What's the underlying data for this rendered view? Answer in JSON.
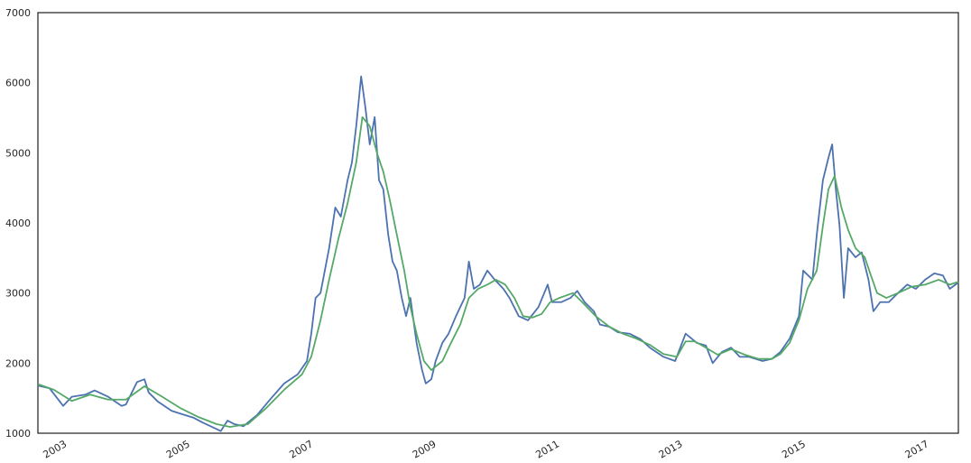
{
  "chart_data": {
    "type": "line",
    "xlim": [
      2002.52,
      2017.47
    ],
    "xticks": [
      2003,
      2005,
      2007,
      2009,
      2011,
      2013,
      2015,
      2017
    ],
    "ylim": [
      1000,
      7000
    ],
    "yticks": [
      1000,
      2000,
      3000,
      4000,
      5000,
      6000,
      7000
    ],
    "grid": false,
    "series": [
      {
        "color": "#4c72b0",
        "x": [
          2002.52,
          2002.71,
          2002.93,
          2003.07,
          2003.29,
          2003.44,
          2003.66,
          2003.88,
          2003.95,
          2004.13,
          2004.25,
          2004.32,
          2004.47,
          2004.69,
          2004.83,
          2005.05,
          2005.2,
          2005.42,
          2005.49,
          2005.6,
          2005.71,
          2005.86,
          2006.08,
          2006.3,
          2006.52,
          2006.74,
          2006.89,
          2006.96,
          2007.03,
          2007.11,
          2007.18,
          2007.25,
          2007.35,
          2007.44,
          2007.55,
          2007.62,
          2007.69,
          2007.77,
          2007.84,
          2007.91,
          2007.99,
          2008.06,
          2008.13,
          2008.21,
          2008.28,
          2008.35,
          2008.43,
          2008.5,
          2008.57,
          2008.67,
          2008.76,
          2008.82,
          2008.91,
          2008.98,
          2009.09,
          2009.19,
          2009.31,
          2009.45,
          2009.52,
          2009.6,
          2009.7,
          2009.82,
          2009.94,
          2010.08,
          2010.18,
          2010.33,
          2010.48,
          2010.65,
          2010.8,
          2010.87,
          2011.02,
          2011.17,
          2011.28,
          2011.4,
          2011.55,
          2011.65,
          2011.8,
          2011.94,
          2012.13,
          2012.31,
          2012.46,
          2012.68,
          2012.87,
          2013.04,
          2013.22,
          2013.37,
          2013.48,
          2013.63,
          2013.78,
          2013.92,
          2014.07,
          2014.29,
          2014.44,
          2014.58,
          2014.73,
          2014.88,
          2014.95,
          2015.1,
          2015.17,
          2015.27,
          2015.36,
          2015.42,
          2015.48,
          2015.54,
          2015.61,
          2015.68,
          2015.8,
          2015.9,
          2016.01,
          2016.09,
          2016.2,
          2016.34,
          2016.49,
          2016.64,
          2016.78,
          2016.93,
          2017.08,
          2017.22,
          2017.33,
          2017.47
        ],
        "values": [
          1680,
          1640,
          1390,
          1520,
          1550,
          1610,
          1520,
          1390,
          1410,
          1730,
          1770,
          1580,
          1450,
          1320,
          1280,
          1220,
          1150,
          1060,
          1030,
          1180,
          1130,
          1100,
          1260,
          1490,
          1710,
          1840,
          2030,
          2420,
          2930,
          3000,
          3320,
          3640,
          4220,
          4090,
          4610,
          4860,
          5380,
          6090,
          5640,
          5120,
          5510,
          4610,
          4480,
          3830,
          3450,
          3320,
          2930,
          2670,
          2930,
          2290,
          1900,
          1710,
          1770,
          2030,
          2290,
          2420,
          2670,
          2930,
          3450,
          3060,
          3120,
          3320,
          3190,
          3060,
          2930,
          2670,
          2610,
          2800,
          3120,
          2870,
          2870,
          2930,
          3030,
          2870,
          2740,
          2550,
          2520,
          2440,
          2420,
          2340,
          2220,
          2090,
          2030,
          2420,
          2290,
          2250,
          2000,
          2160,
          2220,
          2090,
          2090,
          2030,
          2060,
          2160,
          2350,
          2670,
          3320,
          3190,
          3830,
          4610,
          4930,
          5120,
          4480,
          3960,
          2930,
          3640,
          3510,
          3580,
          3190,
          2740,
          2870,
          2870,
          3000,
          3120,
          3060,
          3190,
          3280,
          3250,
          3060,
          3150
        ]
      },
      {
        "color": "#55a868",
        "x": [
          2002.52,
          2002.78,
          2003.07,
          2003.37,
          2003.66,
          2003.95,
          2004.25,
          2004.54,
          2004.83,
          2005.13,
          2005.42,
          2005.64,
          2005.93,
          2006.23,
          2006.52,
          2006.81,
          2006.96,
          2007.11,
          2007.25,
          2007.4,
          2007.55,
          2007.69,
          2007.79,
          2007.91,
          2008.03,
          2008.13,
          2008.23,
          2008.35,
          2008.47,
          2008.57,
          2008.67,
          2008.79,
          2008.91,
          2009.09,
          2009.23,
          2009.38,
          2009.52,
          2009.67,
          2009.82,
          2009.96,
          2010.11,
          2010.26,
          2010.4,
          2010.55,
          2010.7,
          2010.84,
          2010.99,
          2011.21,
          2011.36,
          2011.58,
          2011.8,
          2012.02,
          2012.24,
          2012.46,
          2012.68,
          2012.9,
          2013.04,
          2013.19,
          2013.37,
          2013.56,
          2013.78,
          2014.0,
          2014.22,
          2014.44,
          2014.58,
          2014.73,
          2014.88,
          2015.02,
          2015.17,
          2015.27,
          2015.36,
          2015.46,
          2015.57,
          2015.68,
          2015.8,
          2015.95,
          2016.05,
          2016.15,
          2016.3,
          2016.49,
          2016.71,
          2016.93,
          2017.15,
          2017.33,
          2017.47
        ],
        "values": [
          1700,
          1620,
          1460,
          1550,
          1480,
          1480,
          1670,
          1520,
          1360,
          1230,
          1130,
          1090,
          1130,
          1360,
          1620,
          1840,
          2090,
          2610,
          3190,
          3770,
          4280,
          4860,
          5510,
          5380,
          4990,
          4730,
          4350,
          3830,
          3320,
          2800,
          2420,
          2030,
          1900,
          2030,
          2290,
          2550,
          2930,
          3060,
          3120,
          3190,
          3120,
          2930,
          2670,
          2650,
          2700,
          2870,
          2930,
          3000,
          2870,
          2670,
          2520,
          2420,
          2350,
          2260,
          2130,
          2090,
          2310,
          2310,
          2220,
          2120,
          2200,
          2120,
          2060,
          2060,
          2130,
          2290,
          2610,
          3060,
          3320,
          3960,
          4480,
          4670,
          4220,
          3900,
          3640,
          3510,
          3250,
          3000,
          2930,
          3000,
          3090,
          3120,
          3190,
          3120,
          3160
        ]
      }
    ]
  }
}
